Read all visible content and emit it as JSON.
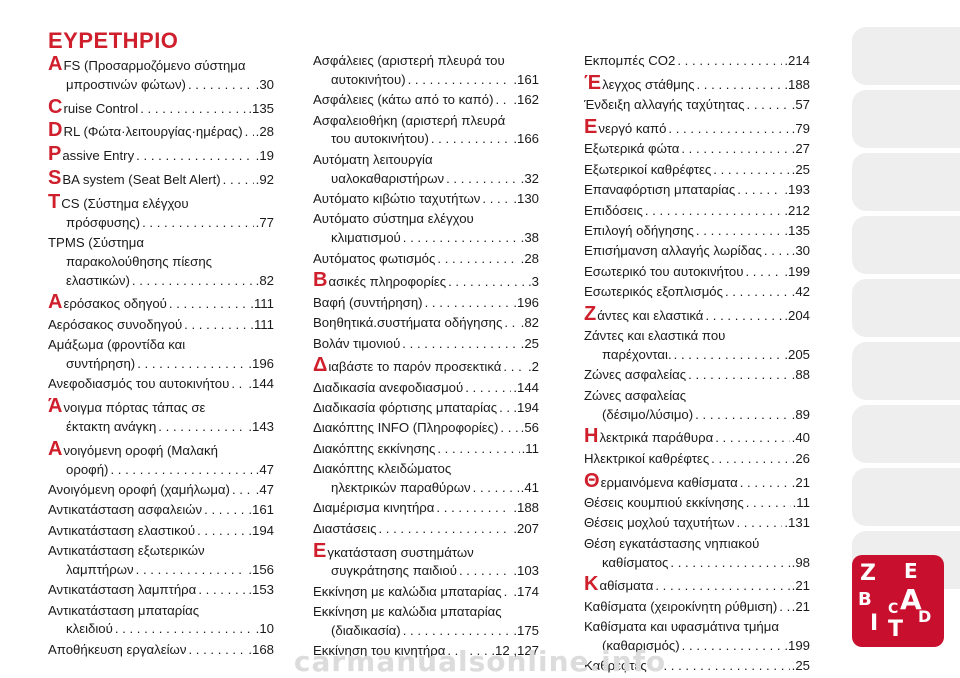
{
  "title": "ΕΥΡΕΤΗΡΙΟ",
  "accent_color": "#d01f2c",
  "columns": [
    [
      {
        "initial": "A",
        "lines": [
          "FS (Προσαρμοζόμενο σύστημα",
          "μπροστινών φώτων)"
        ],
        "page": ".30"
      },
      {
        "initial": "C",
        "lines": [
          "ruise Control"
        ],
        "page": ".135"
      },
      {
        "initial": "D",
        "lines": [
          "RL (Φώτα·λειτουργίας·ημέρας)"
        ],
        "page": ".28"
      },
      {
        "initial": "P",
        "lines": [
          "assive Entry"
        ],
        "page": ".19"
      },
      {
        "initial": "S",
        "lines": [
          "BA system (Seat Belt Alert)"
        ],
        "page": ".92"
      },
      {
        "initial": "T",
        "lines": [
          "CS (Σύστημα ελέγχου",
          "πρόσφυσης)"
        ],
        "page": ".77"
      },
      {
        "lines": [
          "TPMS (Σύστημα",
          "παρακολούθησης πίεσης",
          "ελαστικών)"
        ],
        "page": ".82"
      },
      {
        "initial": "Α",
        "lines": [
          "ερόσακος οδηγού"
        ],
        "page": ".111"
      },
      {
        "lines": [
          "Αερόσακος συνοδηγού"
        ],
        "page": ".111"
      },
      {
        "lines": [
          "Αμάξωμα (φροντίδα και",
          "συντήρηση)"
        ],
        "page": ".196"
      },
      {
        "lines": [
          "Ανεφοδιασμός του αυτοκινήτου"
        ],
        "page": ".144"
      },
      {
        "initial": "Ά",
        "lines": [
          "νοιγμα πόρτας τάπας σε",
          "έκτακτη ανάγκη"
        ],
        "page": ".143"
      },
      {
        "initial": "Α",
        "lines": [
          "νοιγόμενη οροφή (Μαλακή",
          "οροφή)"
        ],
        "page": ".47"
      },
      {
        "lines": [
          "Ανοιγόμενη οροφή (χαμήλωμα)"
        ],
        "page": ".47"
      },
      {
        "lines": [
          "Αντικατάσταση ασφαλειών"
        ],
        "page": ".161"
      },
      {
        "lines": [
          "Αντικατάσταση ελαστικού"
        ],
        "page": ".194"
      },
      {
        "lines": [
          "Αντικατάσταση εξωτερικών",
          "λαμπτήρων"
        ],
        "page": ".156"
      },
      {
        "lines": [
          "Αντικατάσταση λαμπτήρα"
        ],
        "page": ".153"
      },
      {
        "lines": [
          "Αντικατάσταση μπαταρίας",
          "κλειδιού"
        ],
        "page": ".10"
      },
      {
        "lines": [
          "Αποθήκευση εργαλείων"
        ],
        "page": ".168"
      }
    ],
    [
      {
        "lines": [
          "Ασφάλειες (αριστερή πλευρά του",
          "αυτοκινήτου)"
        ],
        "page": ".161"
      },
      {
        "lines": [
          "Ασφάλειες (κάτω από το καπό)"
        ],
        "page": ".162"
      },
      {
        "lines": [
          "Ασφαλειοθήκη (αριστερή πλευρά",
          "του αυτοκινήτου)"
        ],
        "page": ".166"
      },
      {
        "lines": [
          "Αυτόματη λειτουργία",
          "υαλοκαθαριστήρων"
        ],
        "page": ".32"
      },
      {
        "lines": [
          "Αυτόματο κιβώτιο ταχυτήτων"
        ],
        "page": ".130"
      },
      {
        "lines": [
          "Αυτόματο σύστημα ελέγχου",
          "κλιματισμού"
        ],
        "page": ".38"
      },
      {
        "lines": [
          "Αυτόματος φωτισμός"
        ],
        "page": ".28"
      },
      {
        "initial": "Β",
        "lines": [
          "ασικές πληροφορίες"
        ],
        "page": ".3"
      },
      {
        "lines": [
          "Βαφή (συντήρηση)"
        ],
        "page": ".196"
      },
      {
        "lines": [
          "Βοηθητικά.συστήματα οδήγησης"
        ],
        "page": ".82"
      },
      {
        "lines": [
          "Βολάν τιμονιού"
        ],
        "page": ".25"
      },
      {
        "initial": "Δ",
        "lines": [
          "ιαβάστε το παρόν προσεκτικά"
        ],
        "page": ".2"
      },
      {
        "lines": [
          "Διαδικασία ανεφοδιασμού"
        ],
        "page": ".144"
      },
      {
        "lines": [
          "Διαδικασία φόρτισης μπαταρίας"
        ],
        "page": ".194"
      },
      {
        "lines": [
          "Διακόπτης INFO (Πληροφορίες)"
        ],
        "page": ".56"
      },
      {
        "lines": [
          "Διακόπτης εκκίνησης"
        ],
        "page": ".11"
      },
      {
        "lines": [
          "Διακόπτης κλειδώματος",
          "ηλεκτρικών παραθύρων"
        ],
        "page": ".41"
      },
      {
        "lines": [
          "Διαμέρισμα κινητήρα"
        ],
        "page": ".188"
      },
      {
        "lines": [
          "Διαστάσεις"
        ],
        "page": ".207"
      },
      {
        "initial": "Ε",
        "lines": [
          "γκατάσταση συστημάτων",
          "συγκράτησης παιδιού"
        ],
        "page": ".103"
      },
      {
        "lines": [
          "Εκκίνηση με καλώδια μπαταρίας"
        ],
        "page": ".174"
      },
      {
        "lines": [
          "Εκκίνηση με καλώδια μπαταρίας",
          "(διαδικασία)"
        ],
        "page": ".175"
      },
      {
        "lines": [
          "Εκκίνηση του κινητήρα"
        ],
        "page": ".12 ,127"
      }
    ],
    [
      {
        "lines": [
          "Εκπομπές CO2"
        ],
        "page": ".214"
      },
      {
        "initial": "Έ",
        "lines": [
          "λεγχος στάθμης"
        ],
        "page": ".188"
      },
      {
        "lines": [
          "Ένδειξη αλλαγής ταχύτητας"
        ],
        "page": ".57"
      },
      {
        "initial": "Ε",
        "lines": [
          "νεργό καπό"
        ],
        "page": ".79"
      },
      {
        "lines": [
          "Εξωτερικά φώτα"
        ],
        "page": ".27"
      },
      {
        "lines": [
          "Εξωτερικοί καθρέφτες"
        ],
        "page": ".25"
      },
      {
        "lines": [
          "Επαναφόρτιση μπαταρίας"
        ],
        "page": ".193"
      },
      {
        "lines": [
          "Επιδόσεις"
        ],
        "page": ".212"
      },
      {
        "lines": [
          "Επιλογή οδήγησης"
        ],
        "page": ".135"
      },
      {
        "lines": [
          "Επισήμανση αλλαγής λωρίδας"
        ],
        "page": ".30"
      },
      {
        "lines": [
          "Εσωτερικό του αυτοκινήτου"
        ],
        "page": ".199"
      },
      {
        "lines": [
          "Εσωτερικός εξοπλισμός"
        ],
        "page": ".42"
      },
      {
        "initial": "Ζ",
        "lines": [
          "άντες και ελαστικά"
        ],
        "page": ".204"
      },
      {
        "lines": [
          "Ζάντες και ελαστικά που",
          "παρέχονται."
        ],
        "page": ".205"
      },
      {
        "lines": [
          "Ζώνες ασφαλείας"
        ],
        "page": ".88"
      },
      {
        "lines": [
          "Ζώνες ασφαλείας",
          "(δέσιμο/λύσιμο)"
        ],
        "page": ".89"
      },
      {
        "initial": "Η",
        "lines": [
          "λεκτρικά παράθυρα"
        ],
        "page": ".40"
      },
      {
        "lines": [
          "Ηλεκτρικοί καθρέφτες"
        ],
        "page": ".26"
      },
      {
        "initial": "Θ",
        "lines": [
          "ερμαινόμενα καθίσματα"
        ],
        "page": ".21"
      },
      {
        "lines": [
          "Θέσεις κουμπιού εκκίνησης"
        ],
        "page": ".11"
      },
      {
        "lines": [
          "Θέσεις μοχλού ταχυτήτων"
        ],
        "page": ".131"
      },
      {
        "lines": [
          "Θέση εγκατάστασης νηπιακού",
          "καθίσματος"
        ],
        "page": ".98"
      },
      {
        "initial": "Κ",
        "lines": [
          "αθίσματα"
        ],
        "page": ".21"
      },
      {
        "lines": [
          "Καθίσματα (χειροκίνητη ρύθμιση)"
        ],
        "page": ".21"
      },
      {
        "lines": [
          "Καθίσματα και υφασμάτινα τμήμα",
          "(καθαρισμός)"
        ],
        "page": ".199"
      },
      {
        "lines": [
          "Καθρέφτες"
        ],
        "page": ".25"
      }
    ]
  ],
  "side_tab_icons": [
    "seat-belt-icon",
    "car-dashboard-icon",
    "steering-wheel-icon",
    "airbag-icon",
    "warning-triangle-icon",
    "wrench-icon",
    "emergency-tools-icon",
    "car-data-icon",
    "multimedia-icon"
  ],
  "logo": {
    "letters": [
      "Z",
      "E",
      "B",
      "A",
      "I",
      "C",
      "T",
      "D"
    ]
  },
  "watermark": "carmanualsonline.info"
}
